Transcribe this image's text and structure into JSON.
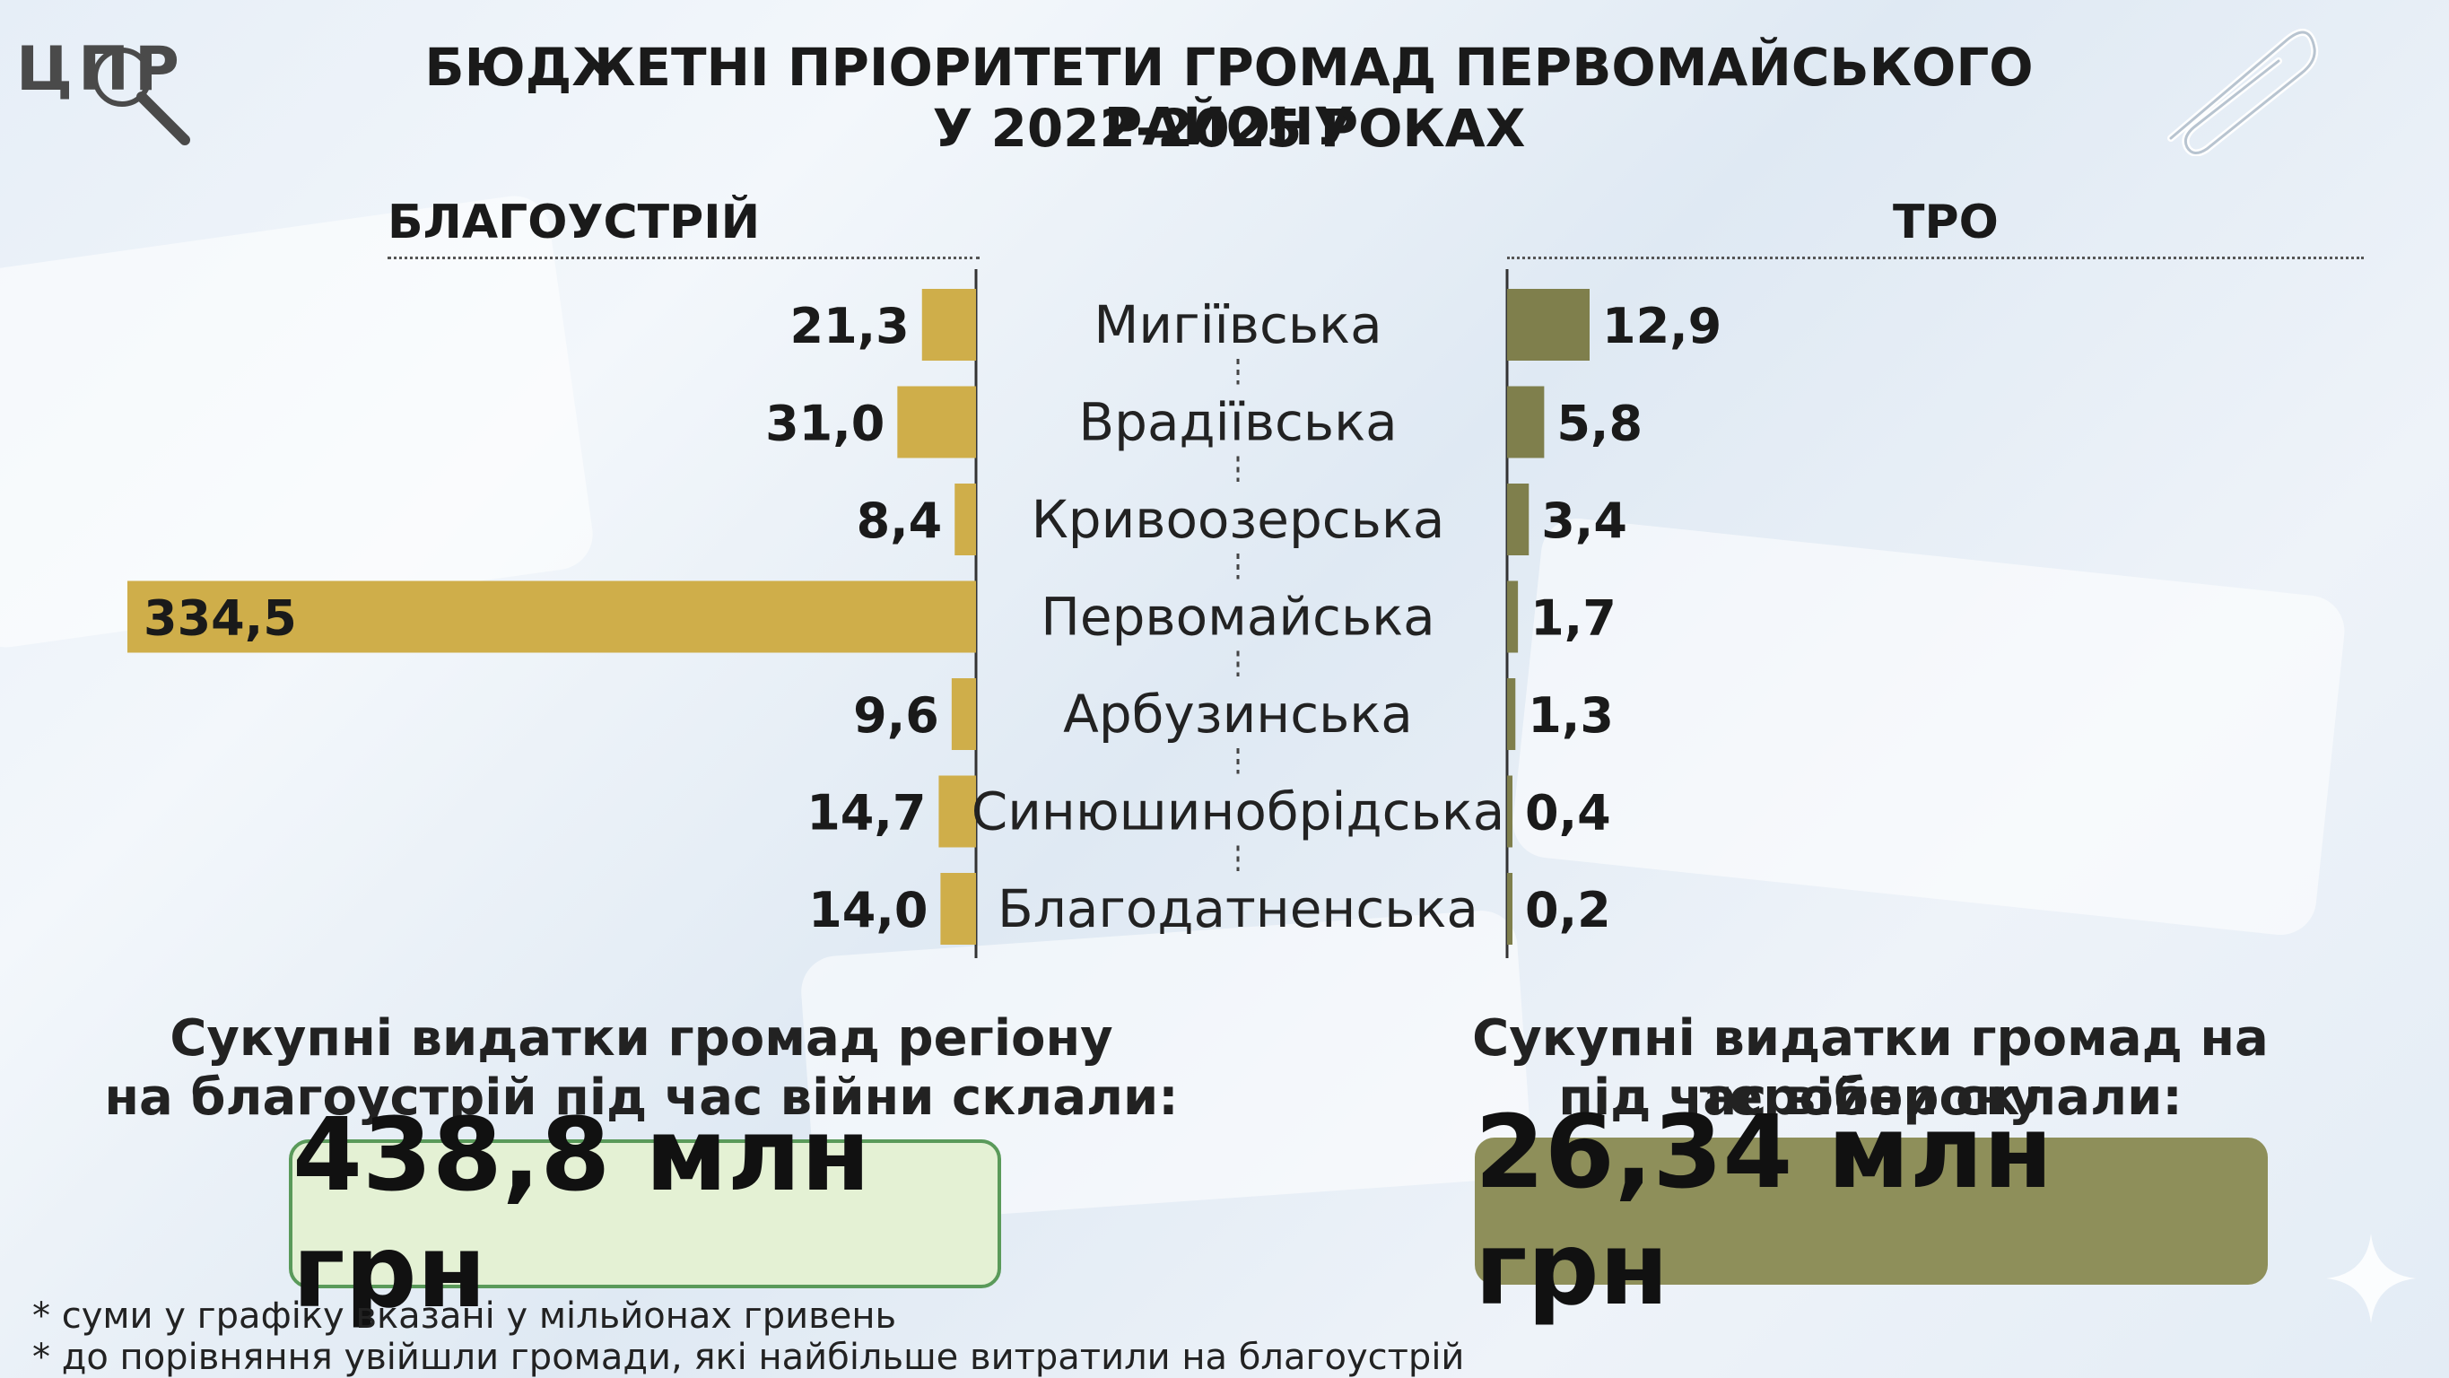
{
  "logo": {
    "text": "ЦПР"
  },
  "title": {
    "line1": "БЮДЖЕТНІ ПРІОРИТЕТИ ГРОМАД ПЕРВОМАЙСЬКОГО РАЙОНУ",
    "line2": "У 2022-2025 РОКАХ"
  },
  "colors": {
    "left_bar": "#cfae4a",
    "right_bar": "#7f7f4c",
    "left_box_bg": "#e4f1d4",
    "right_box_bg": "#8e8f5a"
  },
  "chart_data": {
    "type": "bar",
    "layout": "back-to-back horizontal",
    "categories": [
      "Мигіївська",
      "Врадіївська",
      "Кривоозерська",
      "Первомайська",
      "Арбузинська",
      "Синюшинобрідська",
      "Благодатненська"
    ],
    "category_labels": [
      "Мигіївська",
      "Врадіївська",
      "Кривоозерська",
      "Первомайська",
      "Арбузинська",
      "Синюшинобрідська",
      "Благодатненська"
    ],
    "series": [
      {
        "name": "БЛАГОУСТРІЙ",
        "values": [
          21.3,
          31.0,
          8.4,
          334.5,
          9.6,
          14.7,
          14.0
        ],
        "labels": [
          "21,3",
          "31,0",
          "8,4",
          "334,5",
          "9,6",
          "14,7",
          "14,0"
        ]
      },
      {
        "name": "ТРО",
        "values": [
          12.9,
          5.8,
          3.4,
          1.7,
          1.3,
          0.4,
          0.2
        ],
        "labels": [
          "12,9",
          "5,8",
          "3,4",
          "1,7",
          "1,3",
          "0,4",
          "0,2"
        ]
      }
    ]
  },
  "summary": {
    "left": {
      "line1": "Сукупні видатки громад регіону",
      "line2": "на благоустрій під час війни склали:",
      "total": "438,8 млн грн"
    },
    "right": {
      "line1": "Сукупні видатки громад на тероборону",
      "line2": "під час війни склали:",
      "total": "26,34 млн грн"
    }
  },
  "notes": [
    "* суми у графіку вказані у мільйонах гривень",
    "* до порівняння увійшли громади, які найбільше витратили на благоустрій"
  ]
}
